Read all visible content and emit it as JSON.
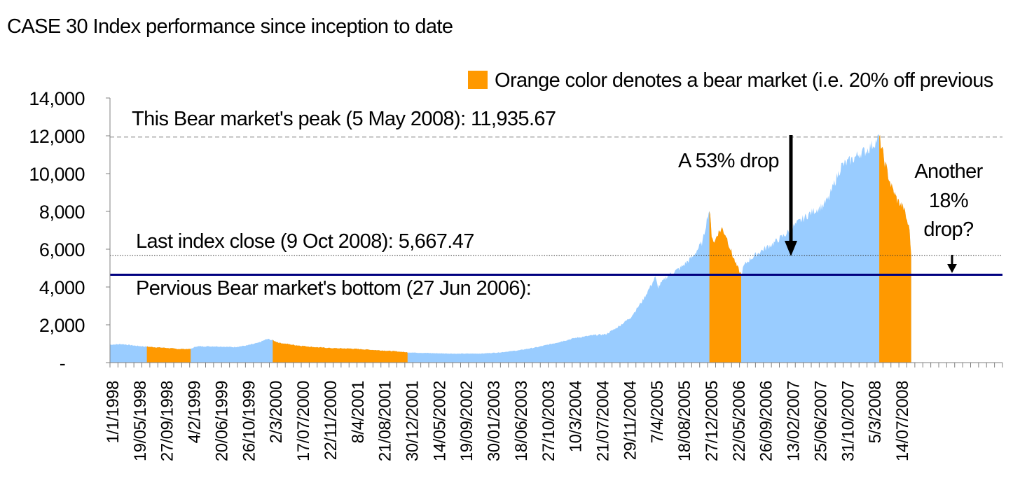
{
  "chart_data": {
    "type": "area",
    "title": "CASE 30 Index performance since inception to date",
    "xlabel": "",
    "ylabel": "",
    "ylim": [
      0,
      14000
    ],
    "y_ticks": [
      {
        "value": 0,
        "label": "-"
      },
      {
        "value": 2000,
        "label": "2,000"
      },
      {
        "value": 4000,
        "label": "4,000"
      },
      {
        "value": 6000,
        "label": "6,000"
      },
      {
        "value": 8000,
        "label": "8,000"
      },
      {
        "value": 10000,
        "label": "10,000"
      },
      {
        "value": 12000,
        "label": "12,000"
      },
      {
        "value": 14000,
        "label": "14,000"
      }
    ],
    "x_range": [
      "1/1/1998",
      "31/12/2009"
    ],
    "x_tick_labels": [
      "1/1/1998",
      "19/05/1998",
      "27/09/1998",
      "4/2/1999",
      "20/06/1999",
      "26/10/1999",
      "2/3/2000",
      "17/07/2000",
      "22/11/2000",
      "8/4/2001",
      "21/08/2001",
      "30/12/2001",
      "14/05/2002",
      "19/09/2002",
      "30/01/2003",
      "18/06/2003",
      "27/10/2003",
      "10/3/2004",
      "21/07/2004",
      "29/11/2004",
      "7/4/2005",
      "18/08/2005",
      "27/12/2005",
      "22/05/2006",
      "26/09/2006",
      "13/02/2007",
      "25/06/2007",
      "31/10/2007",
      "5/3/2008",
      "14/07/2008"
    ],
    "legend": {
      "label": "Orange color denotes a bear market (i.e. 20% off previous",
      "position": "top-right",
      "color": "#FF9900"
    },
    "colors": {
      "normal": "#99CCFF",
      "bear": "#FF9900",
      "support_line": "#000080",
      "axis": "#808080"
    },
    "series": [
      {
        "points": [
          [
            "1/1/1998",
            950
          ],
          [
            "1/3/1998",
            980
          ],
          [
            "1/5/1998",
            900
          ],
          [
            "1/6/1998",
            870
          ],
          [
            "1/8/1998",
            820
          ],
          [
            "1/10/1998",
            780
          ],
          [
            "1/12/1998",
            720
          ],
          [
            "1/2/1999",
            720
          ],
          [
            "1/3/1999",
            860
          ],
          [
            "1/6/1999",
            860
          ],
          [
            "1/9/1999",
            820
          ],
          [
            "1/11/1999",
            900
          ],
          [
            "1/1/2000",
            1050
          ],
          [
            "1/2/2000",
            1200
          ],
          [
            "15/2/2000",
            1250
          ],
          [
            "10/3/2000",
            1180
          ],
          [
            "10/4/2000",
            1050
          ],
          [
            "1/7/2000",
            920
          ],
          [
            "1/10/2000",
            820
          ],
          [
            "1/1/2001",
            760
          ],
          [
            "1/4/2001",
            740
          ],
          [
            "1/7/2001",
            680
          ],
          [
            "1/9/2001",
            640
          ],
          [
            "1/11/2001",
            600
          ],
          [
            "1/1/2002",
            540
          ],
          [
            "1/5/2002",
            500
          ],
          [
            "1/9/2002",
            470
          ],
          [
            "1/1/2003",
            480
          ],
          [
            "1/4/2003",
            540
          ],
          [
            "1/7/2003",
            650
          ],
          [
            "1/10/2003",
            820
          ],
          [
            "1/1/2004",
            1050
          ],
          [
            "1/4/2004",
            1300
          ],
          [
            "1/7/2004",
            1450
          ],
          [
            "1/9/2004",
            1500
          ],
          [
            "1/11/2004",
            1900
          ],
          [
            "1/1/2005",
            2400
          ],
          [
            "1/3/2005",
            3300
          ],
          [
            "1/5/2005",
            4500
          ],
          [
            "15/5/2005",
            4000
          ],
          [
            "1/7/2005",
            4600
          ],
          [
            "1/9/2005",
            5000
          ],
          [
            "1/11/2005",
            5600
          ],
          [
            "20/12/2005",
            6400
          ],
          [
            "10/1/2006",
            7600
          ],
          [
            "22/1/2006",
            8100
          ],
          [
            "2/2/2006",
            6800
          ],
          [
            "15/2/2006",
            6300
          ],
          [
            "1/3/2006",
            6800
          ],
          [
            "25/3/2006",
            7100
          ],
          [
            "15/4/2006",
            6700
          ],
          [
            "5/5/2006",
            6000
          ],
          [
            "1/6/2006",
            5200
          ],
          [
            "27/6/2006",
            4650
          ],
          [
            "10/7/2006",
            5100
          ],
          [
            "1/8/2006",
            5400
          ],
          [
            "1/10/2006",
            5900
          ],
          [
            "1/12/2006",
            6300
          ],
          [
            "1/2/2007",
            6800
          ],
          [
            "1/4/2007",
            7400
          ],
          [
            "1/6/2007",
            7900
          ],
          [
            "1/8/2007",
            8300
          ],
          [
            "1/9/2007",
            8700
          ],
          [
            "1/10/2007",
            9600
          ],
          [
            "1/11/2007",
            10400
          ],
          [
            "1/1/2008",
            10800
          ],
          [
            "1/2/2008",
            11100
          ],
          [
            "1/3/2008",
            11200
          ],
          [
            "10/4/2008",
            11600
          ],
          [
            "5/5/2008",
            11935.67
          ],
          [
            "1/6/2008",
            10600
          ],
          [
            "1/7/2008",
            9400
          ],
          [
            "1/8/2008",
            8600
          ],
          [
            "1/9/2008",
            8200
          ],
          [
            "1/10/2008",
            7000
          ],
          [
            "9/10/2008",
            5667.47
          ]
        ]
      }
    ],
    "bear_markets": [
      {
        "start": "1/7/1998",
        "end": "1/2/1999"
      },
      {
        "start": "10/3/2000",
        "end": "1/1/2002"
      },
      {
        "start": "22/1/2006",
        "end": "27/6/2006"
      },
      {
        "start": "5/5/2008",
        "end": "9/10/2008"
      }
    ],
    "reference_lines": [
      {
        "value": 11935.67,
        "style": "dashed",
        "label": "This Bear market's peak (5 May 2008): 11,935.67"
      },
      {
        "value": 5667.47,
        "style": "dotted",
        "label": "Last index close (9 Oct 2008): 5,667.47"
      },
      {
        "value": 4650,
        "style": "solid",
        "label": "Pervious Bear market's bottom (27 Jun 2006):"
      }
    ],
    "annotations": [
      {
        "text": "A 53% drop"
      },
      {
        "text": "Another"
      },
      {
        "text": "18%"
      },
      {
        "text": "drop?"
      }
    ]
  }
}
